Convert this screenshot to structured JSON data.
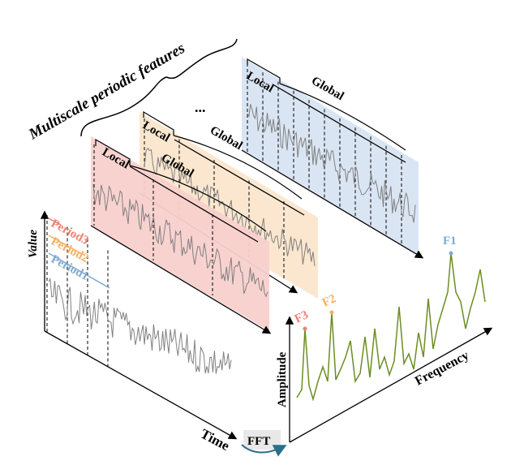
{
  "title": "Multiscale periodic features",
  "ellipsis": "...",
  "time_panel": {
    "y_label": "Value",
    "x_label": "Time",
    "periods": [
      {
        "label": "Period3",
        "color": "#f08070"
      },
      {
        "label": "Period2",
        "color": "#f5b060"
      },
      {
        "label": "Period1",
        "color": "#80aad0"
      }
    ]
  },
  "fft": {
    "label": "FFT",
    "box_color": "#e8e8e8",
    "arrow_color": "#2a6f8a"
  },
  "freq_panel": {
    "y_label": "Amplitude",
    "x_label": "Frequency",
    "line_color": "#6b8e23",
    "peaks": [
      {
        "label": "F1",
        "color": "#80aad0"
      },
      {
        "label": "F2",
        "color": "#f5b060"
      },
      {
        "label": "F3",
        "color": "#f08070"
      }
    ]
  },
  "planes": [
    {
      "name": "period3-plane",
      "fill": "#f8d0cc",
      "local": "Local",
      "global": "Global"
    },
    {
      "name": "period2-plane",
      "fill": "#fbe6cc",
      "local": "Local",
      "global": "Global"
    },
    {
      "name": "period1-plane",
      "fill": "#d6e2f2",
      "local": "Local",
      "global": "Global"
    }
  ],
  "colors": {
    "series": "#808080",
    "axis": "#000000"
  }
}
